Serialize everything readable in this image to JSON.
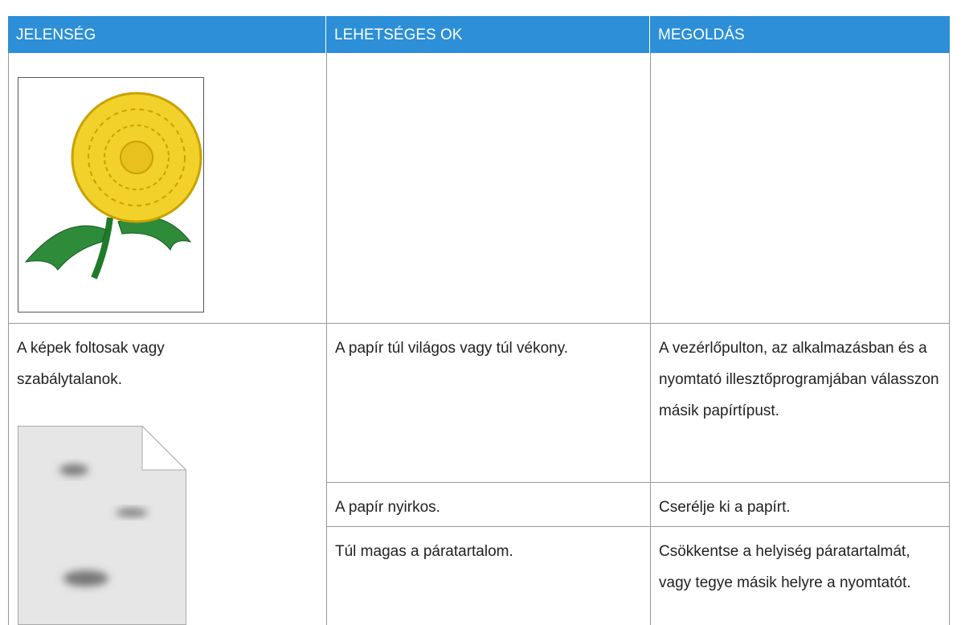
{
  "table": {
    "header": [
      "JELENSÉG",
      "LEHETSÉGES OK",
      "MEGOLDÁS"
    ],
    "symptom": "A képek foltosak vagy szabálytalanok.",
    "causes": [
      {
        "cause": "A papír túl világos vagy túl vékony.",
        "solution": "A vezérlőpulton, az alkalmazásban és a nyomtató illesztőprogramjában válasszon másik papírtípust."
      },
      {
        "cause": "A papír nyirkos.",
        "solution": "Cserélje ki a papírt."
      },
      {
        "cause": "Túl magas a páratartalom.",
        "solution": "Csökkentse a helyiség páratartalmát, vagy tegye másik helyre a nyomtatót."
      }
    ]
  }
}
